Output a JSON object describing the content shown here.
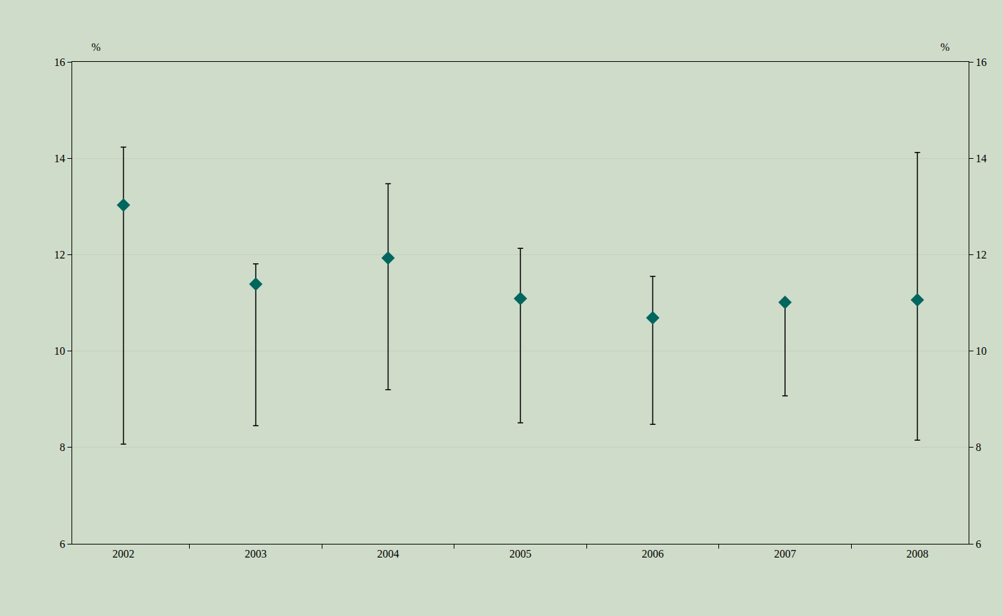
{
  "chart_data": {
    "type": "scatter",
    "categories": [
      "2002",
      "2003",
      "2004",
      "2005",
      "2006",
      "2007",
      "2008"
    ],
    "values": [
      13.03,
      11.39,
      11.93,
      11.09,
      10.69,
      11.01,
      11.06
    ],
    "low": [
      8.07,
      8.45,
      9.2,
      8.51,
      8.48,
      9.07,
      8.15
    ],
    "high": [
      14.23,
      11.81,
      13.47,
      12.13,
      11.55,
      11.01,
      14.12
    ],
    "color": "#00665e",
    "marker": "diamond",
    "ylabel": "%",
    "y2label": "%",
    "ylim": [
      6,
      16
    ],
    "yticks": [
      6,
      8,
      10,
      12,
      14,
      16
    ],
    "y2lim": [
      6,
      16
    ],
    "y2ticks": [
      6,
      8,
      10,
      12,
      14,
      16
    ],
    "grid": true
  }
}
